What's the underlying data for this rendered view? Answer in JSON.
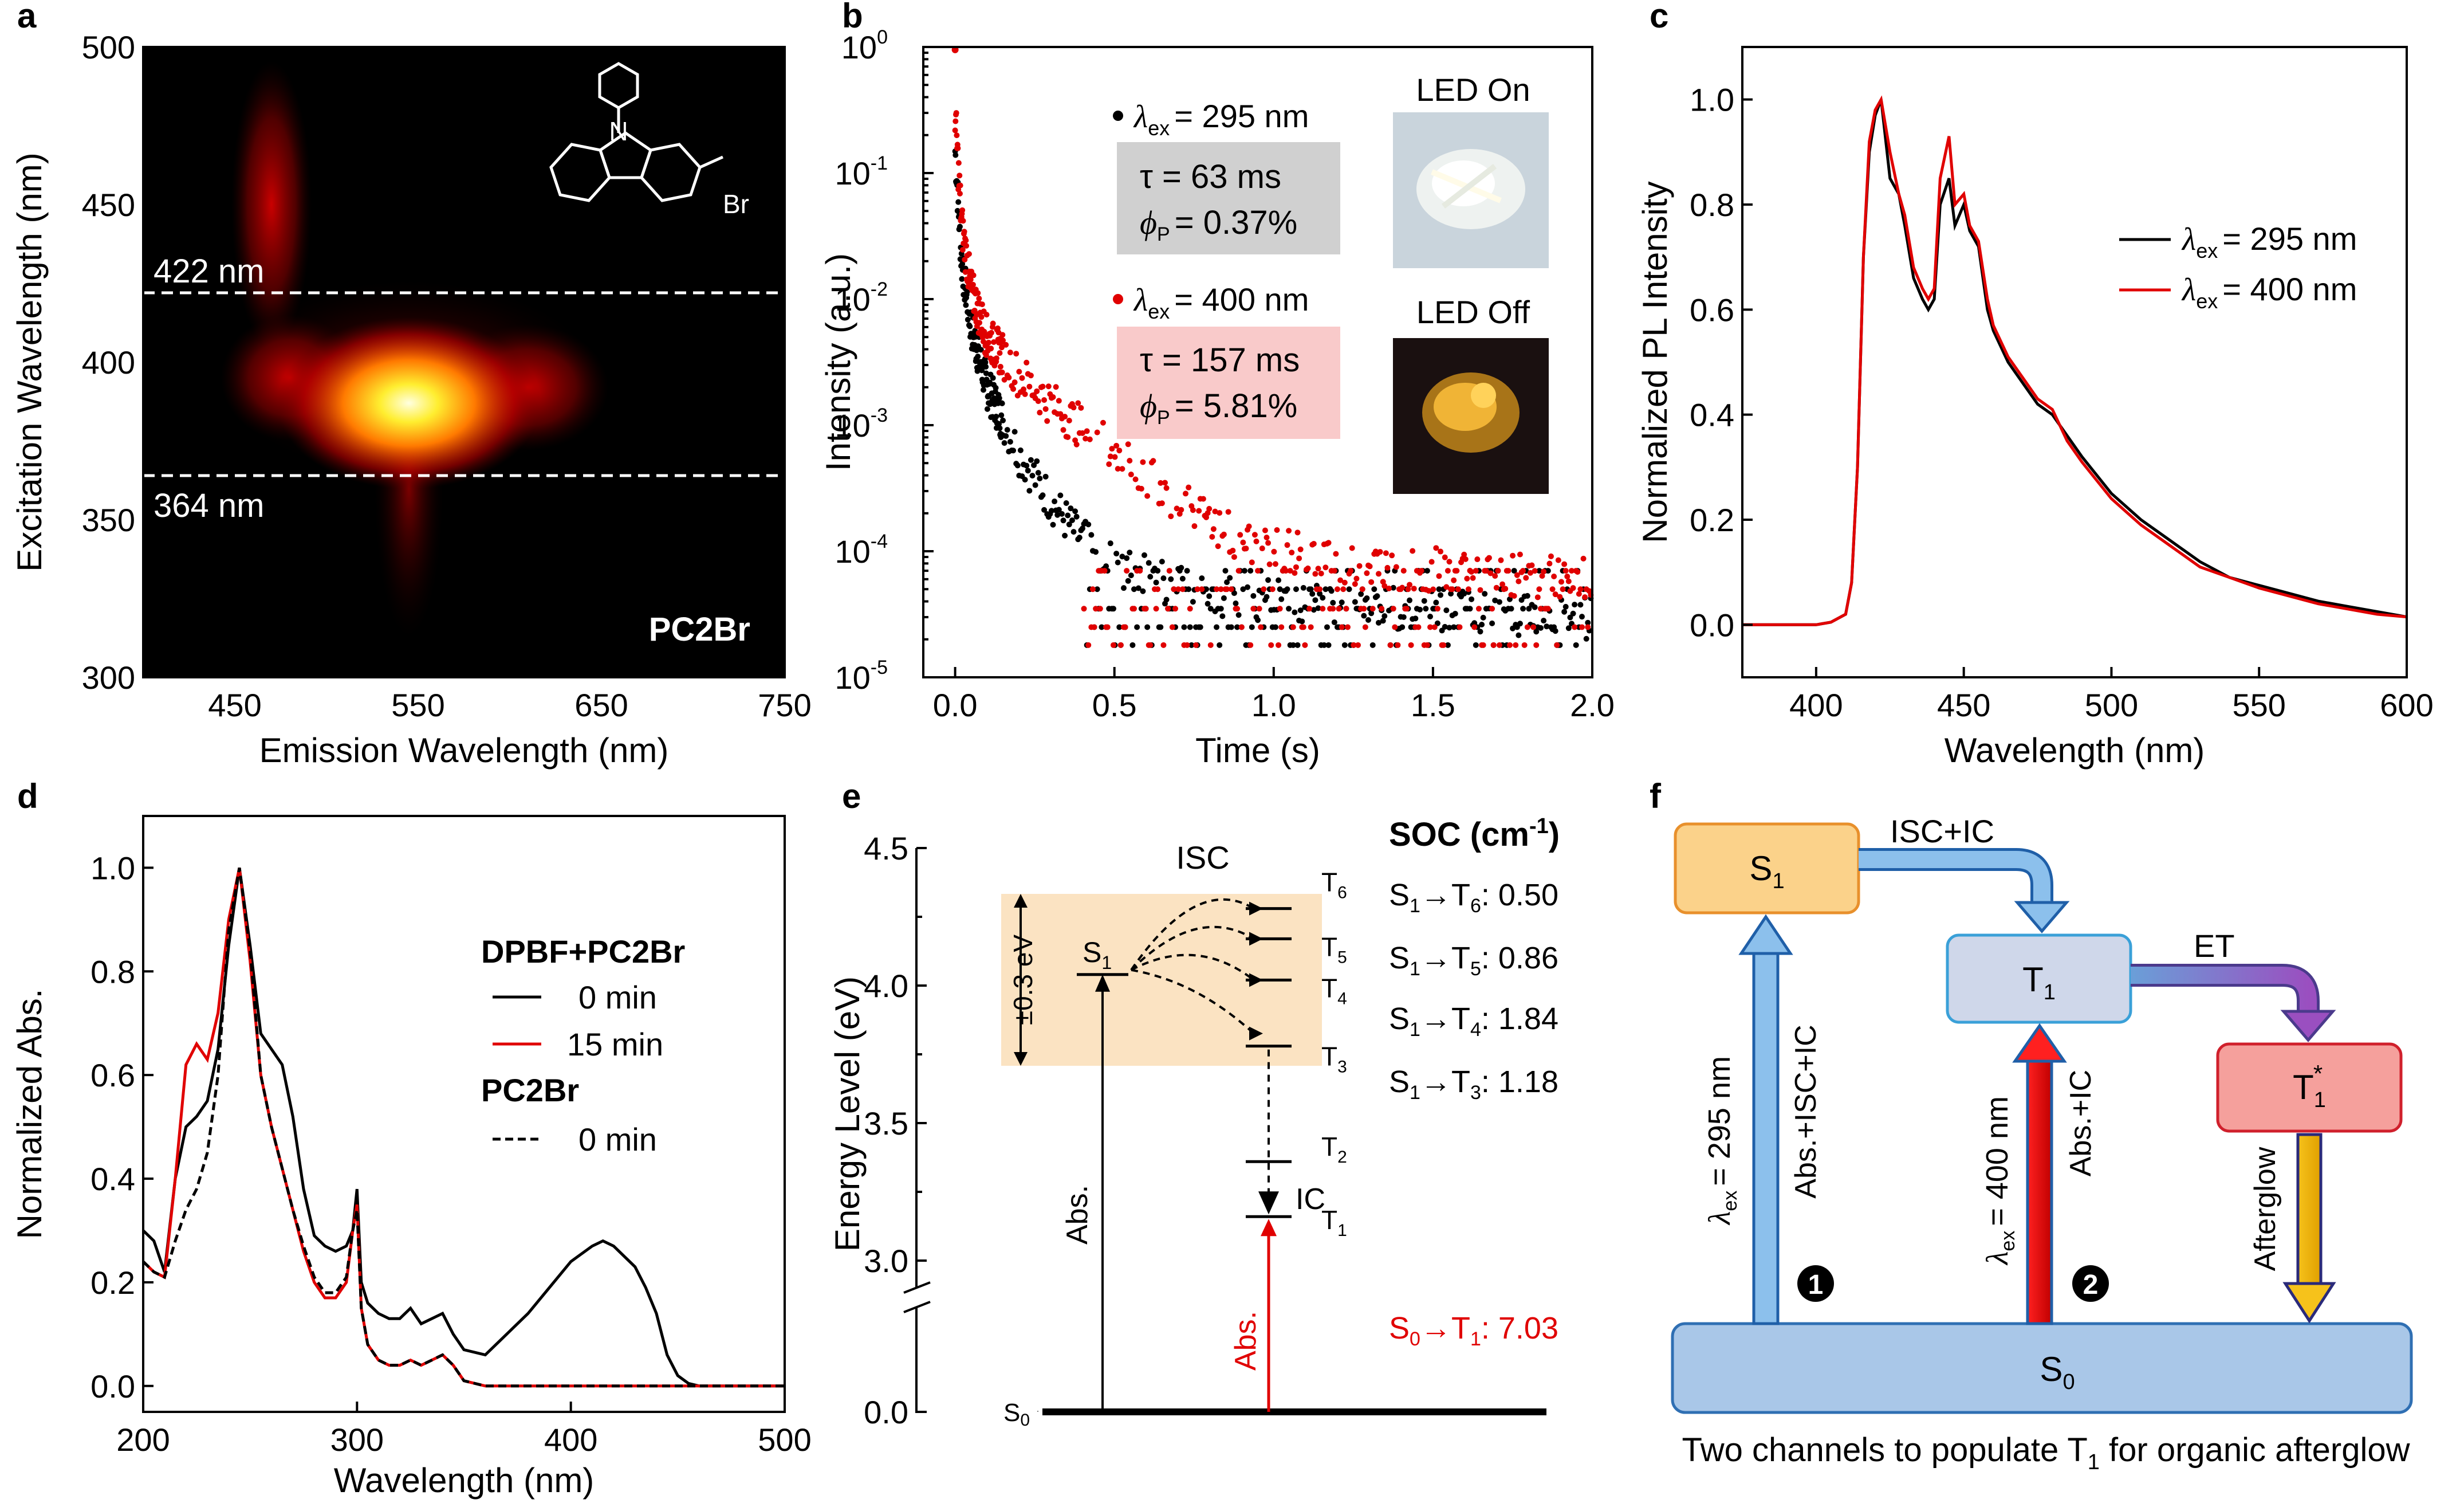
{
  "panel_letters": [
    "a",
    "b",
    "c",
    "d",
    "e",
    "f"
  ],
  "chart_data": [
    {
      "panel": "a",
      "type": "heatmap",
      "xlabel": "Emission Wavelength (nm)",
      "ylabel": "Excitation Wavelength (nm)",
      "xlim": [
        400,
        750
      ],
      "ylim": [
        300,
        500
      ],
      "xticks": [
        450,
        550,
        650,
        750
      ],
      "yticks": [
        300,
        350,
        400,
        450,
        500
      ],
      "hot_spots": [
        {
          "em": 540,
          "ex": 385,
          "intensity": 1.0
        },
        {
          "em": 560,
          "ex": 395,
          "intensity": 0.85
        },
        {
          "em": 480,
          "ex": 395,
          "intensity": 0.5
        },
        {
          "em": 470,
          "ex": 460,
          "intensity": 0.45
        },
        {
          "em": 610,
          "ex": 390,
          "intensity": 0.5
        }
      ],
      "guide_lines": [
        {
          "value": 422,
          "label": "422 nm"
        },
        {
          "value": 364,
          "label": "364 nm"
        }
      ],
      "sample_label": "PC2Br",
      "molecule": {
        "substituent": "Br",
        "heteroatom": "N"
      }
    },
    {
      "panel": "b",
      "type": "scatter",
      "yscale": "log",
      "xlabel": "Time (s)",
      "ylabel": "Intensity (a.u.)",
      "xlim": [
        -0.1,
        2.0
      ],
      "ylim": [
        1e-05,
        1
      ],
      "xticks": [
        "0.0",
        "0.5",
        "1.0",
        "1.5",
        "2.0"
      ],
      "ytick_bases": [
        "10",
        "10",
        "10",
        "10",
        "10",
        "10"
      ],
      "ytick_exps": [
        "-5",
        "-4",
        "-3",
        "-2",
        "-1",
        "0"
      ],
      "series": [
        {
          "name": "λex = 295 nm",
          "symbol": "λ",
          "subscript": "ex",
          "value_text": "= 295 nm",
          "color": "#000000",
          "tau": "τ = 63 ms",
          "phi_sym": "ϕ",
          "phi_sub": "P",
          "phi_text": "= 0.37%",
          "box_color": "#d0d0d0",
          "decay": [
            [
              0,
              0.15
            ],
            [
              0.02,
              0.02
            ],
            [
              0.05,
              0.006
            ],
            [
              0.1,
              0.002
            ],
            [
              0.2,
              0.0006
            ],
            [
              0.3,
              0.00025
            ],
            [
              0.4,
              0.00012
            ],
            [
              0.5,
              8e-05
            ],
            [
              0.7,
              5e-05
            ],
            [
              1.0,
              4e-05
            ],
            [
              2.0,
              3e-05
            ]
          ]
        },
        {
          "name": "λex = 400 nm",
          "symbol": "λ",
          "subscript": "ex",
          "value_text": "= 400 nm",
          "color": "#e00000",
          "tau": "τ = 157 ms",
          "phi_sym": "ϕ",
          "phi_sub": "P",
          "phi_text": "= 5.81%",
          "box_color": "#f9caca",
          "decay": [
            [
              0,
              0.3
            ],
            [
              0.02,
              0.04
            ],
            [
              0.05,
              0.012
            ],
            [
              0.1,
              0.005
            ],
            [
              0.2,
              0.0025
            ],
            [
              0.3,
              0.0015
            ],
            [
              0.5,
              0.0006
            ],
            [
              0.7,
              0.00025
            ],
            [
              0.9,
              0.00012
            ],
            [
              1.2,
              8e-05
            ],
            [
              2.0,
              6e-05
            ]
          ]
        }
      ],
      "photos": [
        {
          "label": "LED On"
        },
        {
          "label": "LED Off"
        }
      ]
    },
    {
      "panel": "c",
      "type": "line",
      "xlabel": "Wavelength (nm)",
      "ylabel": "Normalized PL Intensity",
      "xlim": [
        375,
        600
      ],
      "ylim": [
        -0.1,
        1.1
      ],
      "xticks": [
        400,
        450,
        500,
        550,
        600
      ],
      "yticks": [
        "0.0",
        "0.2",
        "0.4",
        "0.6",
        "0.8",
        "1.0"
      ],
      "legend_position": "right",
      "x": [
        375,
        400,
        405,
        410,
        412,
        414,
        416,
        418,
        420,
        422,
        425,
        428,
        430,
        433,
        436,
        438,
        440,
        442,
        445,
        447,
        450,
        452,
        455,
        458,
        460,
        465,
        470,
        475,
        480,
        485,
        490,
        500,
        510,
        520,
        530,
        540,
        550,
        560,
        570,
        580,
        590,
        600
      ],
      "series": [
        {
          "name": "λex = 295 nm",
          "symbol": "λ",
          "subscript": "ex",
          "value_text": "= 295 nm",
          "color": "#000000",
          "values": [
            0,
            0,
            0.005,
            0.02,
            0.08,
            0.3,
            0.7,
            0.9,
            0.97,
            1.0,
            0.85,
            0.82,
            0.76,
            0.66,
            0.62,
            0.6,
            0.62,
            0.8,
            0.85,
            0.76,
            0.8,
            0.75,
            0.72,
            0.6,
            0.56,
            0.5,
            0.46,
            0.42,
            0.4,
            0.36,
            0.32,
            0.25,
            0.2,
            0.16,
            0.12,
            0.09,
            0.075,
            0.06,
            0.045,
            0.035,
            0.025,
            0.015
          ]
        },
        {
          "name": "λex = 400 nm",
          "symbol": "λ",
          "subscript": "ex",
          "value_text": "= 400 nm",
          "color": "#e00000",
          "values": [
            0,
            0,
            0.005,
            0.02,
            0.08,
            0.3,
            0.7,
            0.92,
            0.98,
            1.0,
            0.9,
            0.82,
            0.78,
            0.68,
            0.64,
            0.62,
            0.64,
            0.85,
            0.93,
            0.8,
            0.82,
            0.76,
            0.73,
            0.62,
            0.57,
            0.51,
            0.47,
            0.43,
            0.41,
            0.35,
            0.31,
            0.24,
            0.19,
            0.15,
            0.11,
            0.09,
            0.07,
            0.055,
            0.04,
            0.03,
            0.02,
            0.015
          ]
        }
      ]
    },
    {
      "panel": "d",
      "type": "line",
      "xlabel": "Wavelength (nm)",
      "ylabel": "Normalized Abs.",
      "xlim": [
        200,
        500
      ],
      "ylim": [
        -0.05,
        1.1
      ],
      "xticks": [
        200,
        300,
        400,
        500
      ],
      "yticks": [
        "0.0",
        "0.2",
        "0.4",
        "0.6",
        "0.8",
        "1.0"
      ],
      "legend_groups": [
        "DPBF+PC2Br",
        "PC2Br"
      ],
      "x": [
        200,
        205,
        210,
        215,
        220,
        225,
        230,
        235,
        240,
        245,
        250,
        255,
        260,
        265,
        270,
        275,
        280,
        285,
        290,
        295,
        298,
        300,
        302,
        305,
        310,
        315,
        320,
        325,
        330,
        335,
        340,
        345,
        350,
        360,
        370,
        380,
        390,
        400,
        410,
        415,
        420,
        425,
        430,
        435,
        440,
        445,
        450,
        455,
        460,
        470,
        480,
        490,
        500
      ],
      "series": [
        {
          "name": "0 min",
          "group": "DPBF+PC2Br",
          "color": "#000000",
          "dash": false,
          "values": [
            0.3,
            0.28,
            0.22,
            0.4,
            0.5,
            0.52,
            0.55,
            0.65,
            0.85,
            1.0,
            0.85,
            0.68,
            0.65,
            0.62,
            0.52,
            0.38,
            0.29,
            0.27,
            0.26,
            0.27,
            0.3,
            0.38,
            0.2,
            0.16,
            0.14,
            0.13,
            0.13,
            0.15,
            0.12,
            0.13,
            0.14,
            0.1,
            0.07,
            0.06,
            0.1,
            0.14,
            0.19,
            0.24,
            0.27,
            0.28,
            0.27,
            0.25,
            0.23,
            0.19,
            0.14,
            0.06,
            0.02,
            0.005,
            0,
            0,
            0,
            0,
            0
          ]
        },
        {
          "name": "15 min",
          "group": "DPBF+PC2Br",
          "color": "#e00000",
          "dash": false,
          "values": [
            0.24,
            0.22,
            0.21,
            0.4,
            0.62,
            0.66,
            0.63,
            0.72,
            0.9,
            1.0,
            0.82,
            0.6,
            0.5,
            0.42,
            0.34,
            0.26,
            0.2,
            0.17,
            0.17,
            0.2,
            0.3,
            0.35,
            0.15,
            0.08,
            0.05,
            0.04,
            0.04,
            0.05,
            0.04,
            0.05,
            0.06,
            0.04,
            0.01,
            0,
            0,
            0,
            0,
            0,
            0,
            0,
            0,
            0,
            0,
            0,
            0,
            0,
            0,
            0,
            0,
            0,
            0,
            0,
            0
          ]
        },
        {
          "name": "0 min",
          "group": "PC2Br",
          "color": "#000000",
          "dash": true,
          "values": [
            0.24,
            0.22,
            0.21,
            0.28,
            0.34,
            0.38,
            0.45,
            0.6,
            0.88,
            1.0,
            0.84,
            0.6,
            0.5,
            0.42,
            0.34,
            0.27,
            0.21,
            0.18,
            0.18,
            0.21,
            0.3,
            0.34,
            0.15,
            0.08,
            0.05,
            0.04,
            0.04,
            0.05,
            0.04,
            0.05,
            0.06,
            0.04,
            0.01,
            0,
            0,
            0,
            0,
            0,
            0,
            0,
            0,
            0,
            0,
            0,
            0,
            0,
            0,
            0,
            0,
            0,
            0,
            0,
            0
          ]
        }
      ]
    },
    {
      "panel": "e",
      "type": "diagram",
      "ylabel": "Energy Level (eV)",
      "yticks": [
        "3.0",
        "3.5",
        "4.0",
        "4.5"
      ],
      "y0_tick": "0.0",
      "levels": [
        {
          "name": "S",
          "sub": "0",
          "energy": 0.0
        },
        {
          "name": "S",
          "sub": "1",
          "energy": 4.04
        },
        {
          "name": "T",
          "sub": "1",
          "energy": 3.16
        },
        {
          "name": "T",
          "sub": "2",
          "energy": 3.36
        },
        {
          "name": "T",
          "sub": "3",
          "energy": 3.78
        },
        {
          "name": "T",
          "sub": "4",
          "energy": 4.02
        },
        {
          "name": "T",
          "sub": "5",
          "energy": 4.17
        },
        {
          "name": "T",
          "sub": "6",
          "energy": 4.28
        }
      ],
      "window_label": "±0.3 eV",
      "labels": {
        "isc": "ISC",
        "ic": "IC",
        "abs": "Abs.",
        "soc_title": "SOC (cm",
        "soc_exp": "-1",
        "soc_close": ")"
      },
      "soc": [
        {
          "from": "S",
          "from_sub": "1",
          "to": "T",
          "to_sub": "6",
          "value": ": 0.50"
        },
        {
          "from": "S",
          "from_sub": "1",
          "to": "T",
          "to_sub": "5",
          "value": ": 0.86"
        },
        {
          "from": "S",
          "from_sub": "1",
          "to": "T",
          "to_sub": "4",
          "value": ": 1.84"
        },
        {
          "from": "S",
          "from_sub": "1",
          "to": "T",
          "to_sub": "3",
          "value": ": 1.18"
        },
        {
          "from": "S",
          "from_sub": "0",
          "to": "T",
          "to_sub": "1",
          "value": ": 7.03",
          "color": "#e00000"
        }
      ]
    },
    {
      "panel": "f",
      "type": "diagram",
      "states": [
        {
          "name": "S",
          "sub": "1",
          "sup": ""
        },
        {
          "name": "T",
          "sub": "1",
          "sup": ""
        },
        {
          "name": "T",
          "sub": "1",
          "sup": "*"
        },
        {
          "name": "S",
          "sub": "0",
          "sup": ""
        }
      ],
      "arrows": {
        "isc_ic": "ISC+IC",
        "et": "ET",
        "ch1_excite": "= 295 nm",
        "ch1_process": "Abs.+ISC+IC",
        "ch2_excite": "= 400 nm",
        "ch2_process": "Abs.+IC",
        "afterglow": "Afterglow"
      },
      "lambda": "λ",
      "lambda_sub": "ex",
      "channels": [
        "1",
        "2"
      ],
      "caption_pre": "Two channels to populate T",
      "caption_sub": "1",
      "caption_post": " for organic afterglow",
      "colors": {
        "s1": "#fbd28a",
        "t1": "#cfd7ea",
        "t1star": "#f5a09c",
        "s0": "#a9c7e8"
      }
    }
  ]
}
